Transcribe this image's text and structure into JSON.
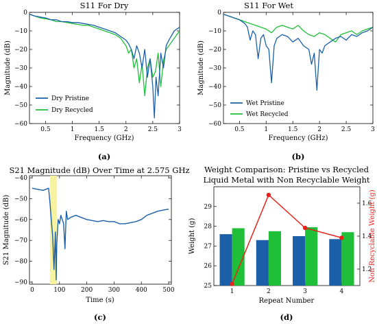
{
  "colors": {
    "blue": "#1a5fa8",
    "green": "#1fbf3a",
    "red": "#e8221a",
    "highlight": "#f7f2a0"
  },
  "captions": {
    "a": "(a)",
    "b": "(b)",
    "c": "(c)",
    "d": "(d)"
  },
  "chart_data": [
    {
      "id": "a",
      "type": "line",
      "title": "S11 For Dry",
      "xlabel": "Frequency (GHz)",
      "ylabel": "Magnitude (dB)",
      "xlim": [
        0.2,
        3.0
      ],
      "ylim": [
        -60,
        0
      ],
      "xticks": [
        0.5,
        1.0,
        1.5,
        2.0,
        2.5,
        3.0
      ],
      "xticklabels": [
        "0.5",
        "1",
        "1.5",
        "2",
        "2.5",
        "3"
      ],
      "yticks": [
        -60,
        -50,
        -40,
        -30,
        -20,
        -10,
        0
      ],
      "yticklabels": [
        "−60",
        "−50",
        "−40",
        "−30",
        "−20",
        "−10",
        "0"
      ],
      "legend_position": "lower-left",
      "series": [
        {
          "name": "Dry Pristine",
          "color": "blue",
          "x": [
            0.2,
            0.3,
            0.4,
            0.5,
            0.6,
            0.7,
            0.8,
            0.9,
            1.0,
            1.1,
            1.2,
            1.3,
            1.4,
            1.5,
            1.6,
            1.7,
            1.8,
            1.9,
            2.0,
            2.05,
            2.1,
            2.15,
            2.2,
            2.25,
            2.3,
            2.35,
            2.4,
            2.45,
            2.5,
            2.53,
            2.56,
            2.6,
            2.65,
            2.7,
            2.75,
            2.8,
            2.9,
            3.0
          ],
          "y": [
            -1,
            -2,
            -2.5,
            -3,
            -4,
            -4,
            -5,
            -5,
            -5.5,
            -5.5,
            -6,
            -6.5,
            -7,
            -8,
            -9,
            -10,
            -11,
            -13,
            -15,
            -17,
            -20,
            -25,
            -18,
            -22,
            -30,
            -20,
            -35,
            -25,
            -40,
            -57,
            -35,
            -45,
            -22,
            -30,
            -18,
            -15,
            -10,
            -8
          ]
        },
        {
          "name": "Dry Recycled",
          "color": "green",
          "x": [
            0.2,
            0.3,
            0.4,
            0.5,
            0.6,
            0.7,
            0.8,
            0.9,
            1.0,
            1.1,
            1.2,
            1.3,
            1.4,
            1.5,
            1.6,
            1.7,
            1.8,
            1.9,
            2.0,
            2.05,
            2.1,
            2.15,
            2.2,
            2.25,
            2.3,
            2.35,
            2.4,
            2.45,
            2.5,
            2.55,
            2.6,
            2.65,
            2.7,
            2.75,
            2.8,
            2.9,
            3.0
          ],
          "y": [
            -1,
            -2,
            -3,
            -3.5,
            -4,
            -5,
            -5,
            -5.5,
            -6,
            -6.5,
            -7,
            -7,
            -8,
            -9,
            -10,
            -11,
            -12,
            -14,
            -18,
            -22,
            -20,
            -30,
            -25,
            -38,
            -28,
            -45,
            -30,
            -25,
            -35,
            -32,
            -22,
            -40,
            -26,
            -20,
            -18,
            -14,
            -10
          ]
        }
      ]
    },
    {
      "id": "b",
      "type": "line",
      "title": "S11 For Wet",
      "xlabel": "Frequency (GHz)",
      "ylabel": "Magnitude (dB)",
      "xlim": [
        0.2,
        3.0
      ],
      "ylim": [
        -60,
        0
      ],
      "xticks": [
        0.5,
        1.0,
        1.5,
        2.0,
        2.5,
        3.0
      ],
      "xticklabels": [
        "0.5",
        "1",
        "1.5",
        "2",
        "2.5",
        "3"
      ],
      "yticks": [
        -60,
        -50,
        -40,
        -30,
        -20,
        -10,
        0
      ],
      "yticklabels": [
        "−60",
        "−50",
        "−40",
        "−30",
        "−20",
        "−10",
        "0"
      ],
      "legend_position": "lower-left",
      "series": [
        {
          "name": "Wet Pristine",
          "color": "blue",
          "x": [
            0.2,
            0.3,
            0.4,
            0.5,
            0.6,
            0.65,
            0.7,
            0.75,
            0.8,
            0.85,
            0.9,
            0.95,
            1.0,
            1.05,
            1.1,
            1.15,
            1.2,
            1.3,
            1.4,
            1.5,
            1.6,
            1.7,
            1.8,
            1.85,
            1.9,
            1.95,
            2.0,
            2.05,
            2.1,
            2.2,
            2.3,
            2.4,
            2.5,
            2.6,
            2.7,
            2.8,
            2.9,
            3.0
          ],
          "y": [
            -1,
            -2,
            -3,
            -4,
            -6,
            -8,
            -15,
            -10,
            -12,
            -25,
            -14,
            -12,
            -18,
            -20,
            -38,
            -18,
            -14,
            -12,
            -13,
            -16,
            -14,
            -18,
            -20,
            -28,
            -22,
            -42,
            -20,
            -22,
            -18,
            -16,
            -14,
            -13,
            -15,
            -12,
            -13,
            -11,
            -10,
            -8
          ]
        },
        {
          "name": "Wet Recycled",
          "color": "green",
          "x": [
            0.2,
            0.3,
            0.4,
            0.5,
            0.6,
            0.7,
            0.8,
            0.9,
            1.0,
            1.1,
            1.2,
            1.3,
            1.4,
            1.5,
            1.6,
            1.7,
            1.8,
            1.9,
            2.0,
            2.1,
            2.2,
            2.3,
            2.4,
            2.5,
            2.6,
            2.7,
            2.8,
            2.9,
            3.0
          ],
          "y": [
            -1,
            -2,
            -3,
            -4,
            -5,
            -6,
            -7,
            -8,
            -9,
            -11,
            -8,
            -7,
            -8,
            -9,
            -7,
            -10,
            -12,
            -13,
            -11,
            -12,
            -14,
            -16,
            -12,
            -11,
            -10,
            -12,
            -10,
            -9,
            -8
          ]
        }
      ]
    },
    {
      "id": "c",
      "type": "line",
      "title": "S21 Magnitude (dB) Over Time at 2.575 GHz",
      "xlabel": "Time (s)",
      "ylabel": "S21 Magnitude (dB)",
      "xlim": [
        -10,
        510
      ],
      "ylim": [
        -91,
        -39
      ],
      "xticks": [
        0,
        100,
        200,
        300,
        400,
        500
      ],
      "xticklabels": [
        "0",
        "100",
        "200",
        "300",
        "400",
        "500"
      ],
      "yticks": [
        -90,
        -80,
        -70,
        -60,
        -50,
        -40
      ],
      "yticklabels": [
        "−90",
        "−80",
        "−70",
        "−60",
        "−50",
        "−40"
      ],
      "highlight_x": [
        65,
        90
      ],
      "series": [
        {
          "name": "",
          "color": "blue",
          "x": [
            0,
            20,
            40,
            60,
            65,
            70,
            75,
            80,
            85,
            88,
            90,
            95,
            100,
            105,
            110,
            115,
            120,
            125,
            130,
            140,
            160,
            180,
            200,
            220,
            240,
            260,
            280,
            300,
            320,
            340,
            360,
            380,
            400,
            420,
            440,
            460,
            480,
            500
          ],
          "y": [
            -45,
            -45.5,
            -46,
            -45,
            -52,
            -60,
            -68,
            -84,
            -66,
            -89,
            -72,
            -60,
            -62,
            -58,
            -60,
            -62,
            -74,
            -56,
            -60,
            -59,
            -58,
            -59,
            -60,
            -60.5,
            -61,
            -60.5,
            -61,
            -61,
            -62,
            -62,
            -61.5,
            -61,
            -60,
            -58,
            -57,
            -56,
            -55.5,
            -55
          ]
        }
      ]
    },
    {
      "id": "d",
      "type": "bar",
      "title": "Weight Comparison: Pristine vs Recycled",
      "subtitle": "Liquid Metal with Non Recyclable Weight",
      "xlabel": "Repeat Number",
      "ylabel": "Weight (g)",
      "ylabel_right": "Non Recyclable Weight (g)",
      "categories": [
        "1",
        "2",
        "3",
        "4"
      ],
      "ylim": [
        25,
        30
      ],
      "yticks": [
        25,
        26,
        27,
        28,
        29
      ],
      "yticklabels": [
        "25",
        "26",
        "27",
        "28",
        "29"
      ],
      "ylim_right": [
        1.1,
        1.7
      ],
      "yticks_right": [
        1.2,
        1.4,
        1.6
      ],
      "yticklabels_right": [
        "1.2",
        "1.4",
        "1.6"
      ],
      "series": [
        {
          "name": "",
          "color": "blue",
          "values": [
            27.6,
            27.3,
            27.5,
            27.35
          ]
        },
        {
          "name": "",
          "color": "green",
          "values": [
            27.9,
            27.75,
            27.95,
            27.7
          ]
        }
      ],
      "line_series": {
        "name": "",
        "color": "red",
        "axis": "right",
        "values": [
          1.11,
          1.65,
          1.45,
          1.39
        ]
      }
    }
  ]
}
